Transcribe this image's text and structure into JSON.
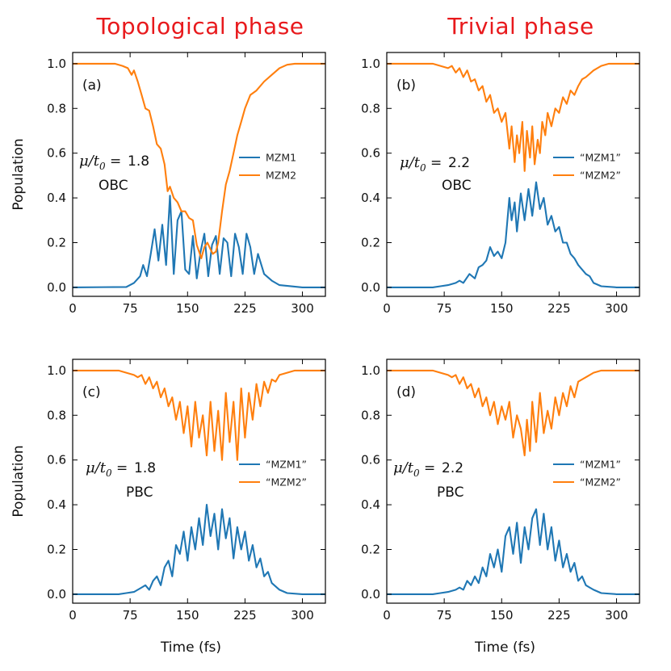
{
  "titles": {
    "left": "Topological phase",
    "right": "Trivial phase"
  },
  "colors": {
    "title": "#e8191c",
    "mzm1": "#1f77b4",
    "mzm2": "#ff7f0e"
  },
  "chart_data": [
    {
      "type": "line",
      "panel": "(a)",
      "mu_value": "1.8",
      "boundary": "OBC",
      "xlabel": "",
      "ylabel": "Population",
      "xlim": [
        0,
        330
      ],
      "ylim": [
        -0.04,
        1.05
      ],
      "xticks": [
        "0",
        "75",
        "150",
        "225",
        "300"
      ],
      "yticks": [
        "0.0",
        "0.2",
        "0.4",
        "0.6",
        "0.8",
        "1.0"
      ],
      "legend": [
        "MZM1",
        "MZM2"
      ],
      "legend_position": "right",
      "series": [
        {
          "name": "MZM1",
          "x": [
            0,
            70,
            80,
            88,
            92,
            97,
            102,
            107,
            112,
            117,
            122,
            127,
            132,
            137,
            142,
            147,
            152,
            157,
            162,
            167,
            172,
            177,
            182,
            187,
            192,
            197,
            202,
            207,
            212,
            217,
            222,
            227,
            232,
            237,
            242,
            250,
            260,
            270,
            300,
            330
          ],
          "y": [
            0,
            0.002,
            0.02,
            0.05,
            0.1,
            0.05,
            0.15,
            0.26,
            0.12,
            0.28,
            0.1,
            0.41,
            0.06,
            0.3,
            0.34,
            0.08,
            0.06,
            0.23,
            0.04,
            0.16,
            0.24,
            0.05,
            0.19,
            0.23,
            0.06,
            0.22,
            0.2,
            0.05,
            0.24,
            0.18,
            0.06,
            0.24,
            0.18,
            0.06,
            0.15,
            0.06,
            0.03,
            0.01,
            0.0,
            0.0
          ]
        },
        {
          "name": "MZM2",
          "x": [
            0,
            55,
            65,
            72,
            77,
            80,
            85,
            90,
            95,
            100,
            105,
            110,
            115,
            120,
            124,
            127,
            132,
            137,
            142,
            147,
            152,
            157,
            162,
            165,
            168,
            172,
            176,
            180,
            183,
            187,
            190,
            195,
            200,
            205,
            210,
            215,
            220,
            225,
            232,
            240,
            250,
            260,
            270,
            280,
            290,
            300,
            330
          ],
          "y": [
            1.0,
            1.0,
            0.99,
            0.98,
            0.95,
            0.97,
            0.92,
            0.86,
            0.8,
            0.79,
            0.72,
            0.64,
            0.62,
            0.55,
            0.43,
            0.45,
            0.4,
            0.38,
            0.34,
            0.34,
            0.31,
            0.3,
            0.19,
            0.16,
            0.13,
            0.18,
            0.2,
            0.17,
            0.15,
            0.16,
            0.2,
            0.34,
            0.46,
            0.52,
            0.6,
            0.68,
            0.74,
            0.8,
            0.86,
            0.88,
            0.92,
            0.95,
            0.98,
            0.995,
            1.0,
            1.0,
            1.0
          ]
        }
      ]
    },
    {
      "type": "line",
      "panel": "(b)",
      "mu_value": "2.2",
      "boundary": "OBC",
      "xlabel": "",
      "ylabel": "",
      "xlim": [
        0,
        330
      ],
      "ylim": [
        -0.04,
        1.05
      ],
      "xticks": [
        "0",
        "75",
        "150",
        "225",
        "300"
      ],
      "yticks": [
        "0.0",
        "0.2",
        "0.4",
        "0.6",
        "0.8",
        "1.0"
      ],
      "legend": [
        "“MZM1”",
        "“MZM2”"
      ],
      "legend_position": "right",
      "series": [
        {
          "name": "“MZM1”",
          "x": [
            0,
            60,
            70,
            80,
            90,
            95,
            100,
            108,
            115,
            120,
            125,
            130,
            135,
            140,
            145,
            150,
            155,
            160,
            163,
            167,
            170,
            175,
            180,
            185,
            190,
            195,
            200,
            205,
            210,
            215,
            220,
            225,
            230,
            235,
            240,
            245,
            250,
            255,
            260,
            265,
            270,
            280,
            300,
            330
          ],
          "y": [
            0,
            0.0,
            0.005,
            0.01,
            0.02,
            0.03,
            0.02,
            0.06,
            0.04,
            0.09,
            0.1,
            0.12,
            0.18,
            0.14,
            0.16,
            0.13,
            0.2,
            0.4,
            0.3,
            0.38,
            0.25,
            0.42,
            0.3,
            0.44,
            0.32,
            0.47,
            0.35,
            0.4,
            0.28,
            0.32,
            0.25,
            0.27,
            0.2,
            0.2,
            0.15,
            0.13,
            0.1,
            0.08,
            0.06,
            0.05,
            0.02,
            0.005,
            0.0,
            0.0
          ]
        },
        {
          "name": "“MZM2”",
          "x": [
            0,
            60,
            70,
            80,
            85,
            90,
            95,
            100,
            105,
            110,
            115,
            120,
            125,
            130,
            135,
            140,
            145,
            150,
            155,
            160,
            163,
            167,
            170,
            173,
            177,
            180,
            183,
            187,
            190,
            193,
            197,
            200,
            203,
            207,
            210,
            215,
            220,
            225,
            230,
            235,
            240,
            245,
            250,
            255,
            260,
            270,
            280,
            290,
            300,
            330
          ],
          "y": [
            1.0,
            1.0,
            0.99,
            0.98,
            0.99,
            0.96,
            0.98,
            0.94,
            0.97,
            0.92,
            0.93,
            0.88,
            0.9,
            0.83,
            0.86,
            0.78,
            0.8,
            0.74,
            0.78,
            0.62,
            0.72,
            0.56,
            0.68,
            0.6,
            0.74,
            0.52,
            0.7,
            0.58,
            0.72,
            0.55,
            0.66,
            0.6,
            0.74,
            0.68,
            0.78,
            0.72,
            0.8,
            0.78,
            0.85,
            0.82,
            0.88,
            0.86,
            0.9,
            0.93,
            0.94,
            0.97,
            0.99,
            1.0,
            1.0,
            1.0
          ]
        }
      ]
    },
    {
      "type": "line",
      "panel": "(c)",
      "mu_value": "1.8",
      "boundary": "PBC",
      "xlabel": "Time (fs)",
      "ylabel": "Population",
      "xlim": [
        0,
        330
      ],
      "ylim": [
        -0.04,
        1.05
      ],
      "xticks": [
        "0",
        "75",
        "150",
        "225",
        "300"
      ],
      "yticks": [
        "0.0",
        "0.2",
        "0.4",
        "0.6",
        "0.8",
        "1.0"
      ],
      "legend": [
        "“MZM1”",
        "“MZM2”"
      ],
      "legend_position": "right",
      "series": [
        {
          "name": "“MZM1”",
          "x": [
            0,
            60,
            70,
            80,
            90,
            95,
            100,
            105,
            110,
            115,
            120,
            125,
            130,
            135,
            140,
            145,
            150,
            155,
            160,
            165,
            170,
            175,
            180,
            185,
            190,
            195,
            200,
            205,
            210,
            215,
            220,
            225,
            230,
            235,
            240,
            245,
            250,
            255,
            260,
            270,
            280,
            300,
            330
          ],
          "y": [
            0,
            0.0,
            0.005,
            0.01,
            0.03,
            0.04,
            0.02,
            0.06,
            0.08,
            0.04,
            0.12,
            0.15,
            0.08,
            0.22,
            0.18,
            0.28,
            0.15,
            0.3,
            0.2,
            0.34,
            0.22,
            0.4,
            0.26,
            0.36,
            0.2,
            0.38,
            0.25,
            0.34,
            0.16,
            0.3,
            0.2,
            0.28,
            0.15,
            0.22,
            0.12,
            0.16,
            0.08,
            0.1,
            0.05,
            0.02,
            0.005,
            0.0,
            0.0
          ]
        },
        {
          "name": "“MZM2”",
          "x": [
            0,
            60,
            70,
            80,
            85,
            90,
            95,
            100,
            105,
            110,
            115,
            120,
            125,
            130,
            135,
            140,
            145,
            150,
            155,
            160,
            165,
            170,
            175,
            180,
            185,
            190,
            195,
            200,
            205,
            210,
            215,
            220,
            225,
            230,
            235,
            240,
            245,
            250,
            255,
            260,
            265,
            270,
            280,
            290,
            300,
            330
          ],
          "y": [
            1.0,
            1.0,
            0.99,
            0.98,
            0.97,
            0.98,
            0.94,
            0.97,
            0.92,
            0.95,
            0.88,
            0.92,
            0.84,
            0.88,
            0.78,
            0.86,
            0.72,
            0.84,
            0.66,
            0.86,
            0.7,
            0.8,
            0.62,
            0.86,
            0.64,
            0.82,
            0.6,
            0.9,
            0.68,
            0.86,
            0.6,
            0.92,
            0.7,
            0.9,
            0.78,
            0.94,
            0.84,
            0.95,
            0.9,
            0.96,
            0.95,
            0.98,
            0.99,
            1.0,
            1.0,
            1.0
          ]
        }
      ]
    },
    {
      "type": "line",
      "panel": "(d)",
      "mu_value": "2.2",
      "boundary": "PBC",
      "xlabel": "Time (fs)",
      "ylabel": "",
      "xlim": [
        0,
        330
      ],
      "ylim": [
        -0.04,
        1.05
      ],
      "xticks": [
        "0",
        "75",
        "150",
        "225",
        "300"
      ],
      "yticks": [
        "0.0",
        "0.2",
        "0.4",
        "0.6",
        "0.8",
        "1.0"
      ],
      "legend": [
        "“MZM1”",
        "“MZM2”"
      ],
      "legend_position": "right",
      "series": [
        {
          "name": "“MZM1”",
          "x": [
            0,
            60,
            70,
            80,
            90,
            95,
            100,
            105,
            110,
            115,
            120,
            125,
            130,
            135,
            140,
            145,
            150,
            155,
            160,
            165,
            170,
            175,
            180,
            185,
            190,
            195,
            200,
            205,
            210,
            215,
            220,
            225,
            230,
            235,
            240,
            245,
            250,
            255,
            260,
            265,
            270,
            280,
            300,
            330
          ],
          "y": [
            0,
            0.0,
            0.005,
            0.01,
            0.02,
            0.03,
            0.02,
            0.06,
            0.04,
            0.08,
            0.05,
            0.12,
            0.08,
            0.18,
            0.12,
            0.2,
            0.1,
            0.26,
            0.3,
            0.18,
            0.32,
            0.14,
            0.3,
            0.2,
            0.34,
            0.38,
            0.22,
            0.36,
            0.2,
            0.3,
            0.15,
            0.24,
            0.12,
            0.18,
            0.1,
            0.14,
            0.06,
            0.08,
            0.04,
            0.03,
            0.02,
            0.005,
            0.0,
            0.0
          ]
        },
        {
          "name": "“MZM2”",
          "x": [
            0,
            60,
            70,
            80,
            85,
            90,
            95,
            100,
            105,
            110,
            115,
            120,
            125,
            130,
            135,
            140,
            145,
            150,
            155,
            160,
            165,
            170,
            175,
            180,
            183,
            187,
            190,
            195,
            200,
            205,
            210,
            215,
            220,
            225,
            230,
            235,
            240,
            245,
            250,
            255,
            260,
            270,
            280,
            290,
            300,
            330
          ],
          "y": [
            1.0,
            1.0,
            0.99,
            0.98,
            0.97,
            0.98,
            0.94,
            0.97,
            0.92,
            0.94,
            0.88,
            0.92,
            0.84,
            0.88,
            0.8,
            0.86,
            0.76,
            0.84,
            0.78,
            0.86,
            0.7,
            0.8,
            0.74,
            0.62,
            0.78,
            0.64,
            0.86,
            0.68,
            0.9,
            0.72,
            0.82,
            0.74,
            0.88,
            0.8,
            0.9,
            0.84,
            0.93,
            0.88,
            0.95,
            0.96,
            0.97,
            0.99,
            1.0,
            1.0,
            1.0,
            1.0
          ]
        }
      ]
    }
  ]
}
